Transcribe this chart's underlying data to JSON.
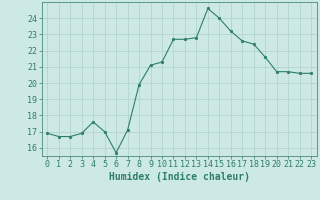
{
  "x": [
    0,
    1,
    2,
    3,
    4,
    5,
    6,
    7,
    8,
    9,
    10,
    11,
    12,
    13,
    14,
    15,
    16,
    17,
    18,
    19,
    20,
    21,
    22,
    23
  ],
  "y": [
    16.9,
    16.7,
    16.7,
    16.9,
    17.6,
    17.0,
    15.7,
    17.1,
    19.9,
    21.1,
    21.3,
    22.7,
    22.7,
    22.8,
    24.6,
    24.0,
    23.2,
    22.6,
    22.4,
    21.6,
    20.7,
    20.7,
    20.6,
    20.6
  ],
  "line_color": "#2e7d6e",
  "marker_color": "#2e7d6e",
  "bg_color": "#cce9e5",
  "grid_color": "#b0d0cc",
  "xlabel": "Humidex (Indice chaleur)",
  "xlim": [
    -0.5,
    23.5
  ],
  "ylim": [
    15.5,
    25.0
  ],
  "yticks": [
    16,
    17,
    18,
    19,
    20,
    21,
    22,
    23,
    24
  ],
  "xticks": [
    0,
    1,
    2,
    3,
    4,
    5,
    6,
    7,
    8,
    9,
    10,
    11,
    12,
    13,
    14,
    15,
    16,
    17,
    18,
    19,
    20,
    21,
    22,
    23
  ],
  "tick_color": "#2e7d6e",
  "xlabel_fontsize": 7,
  "tick_fontsize": 6,
  "spine_color": "#4a8a7a"
}
